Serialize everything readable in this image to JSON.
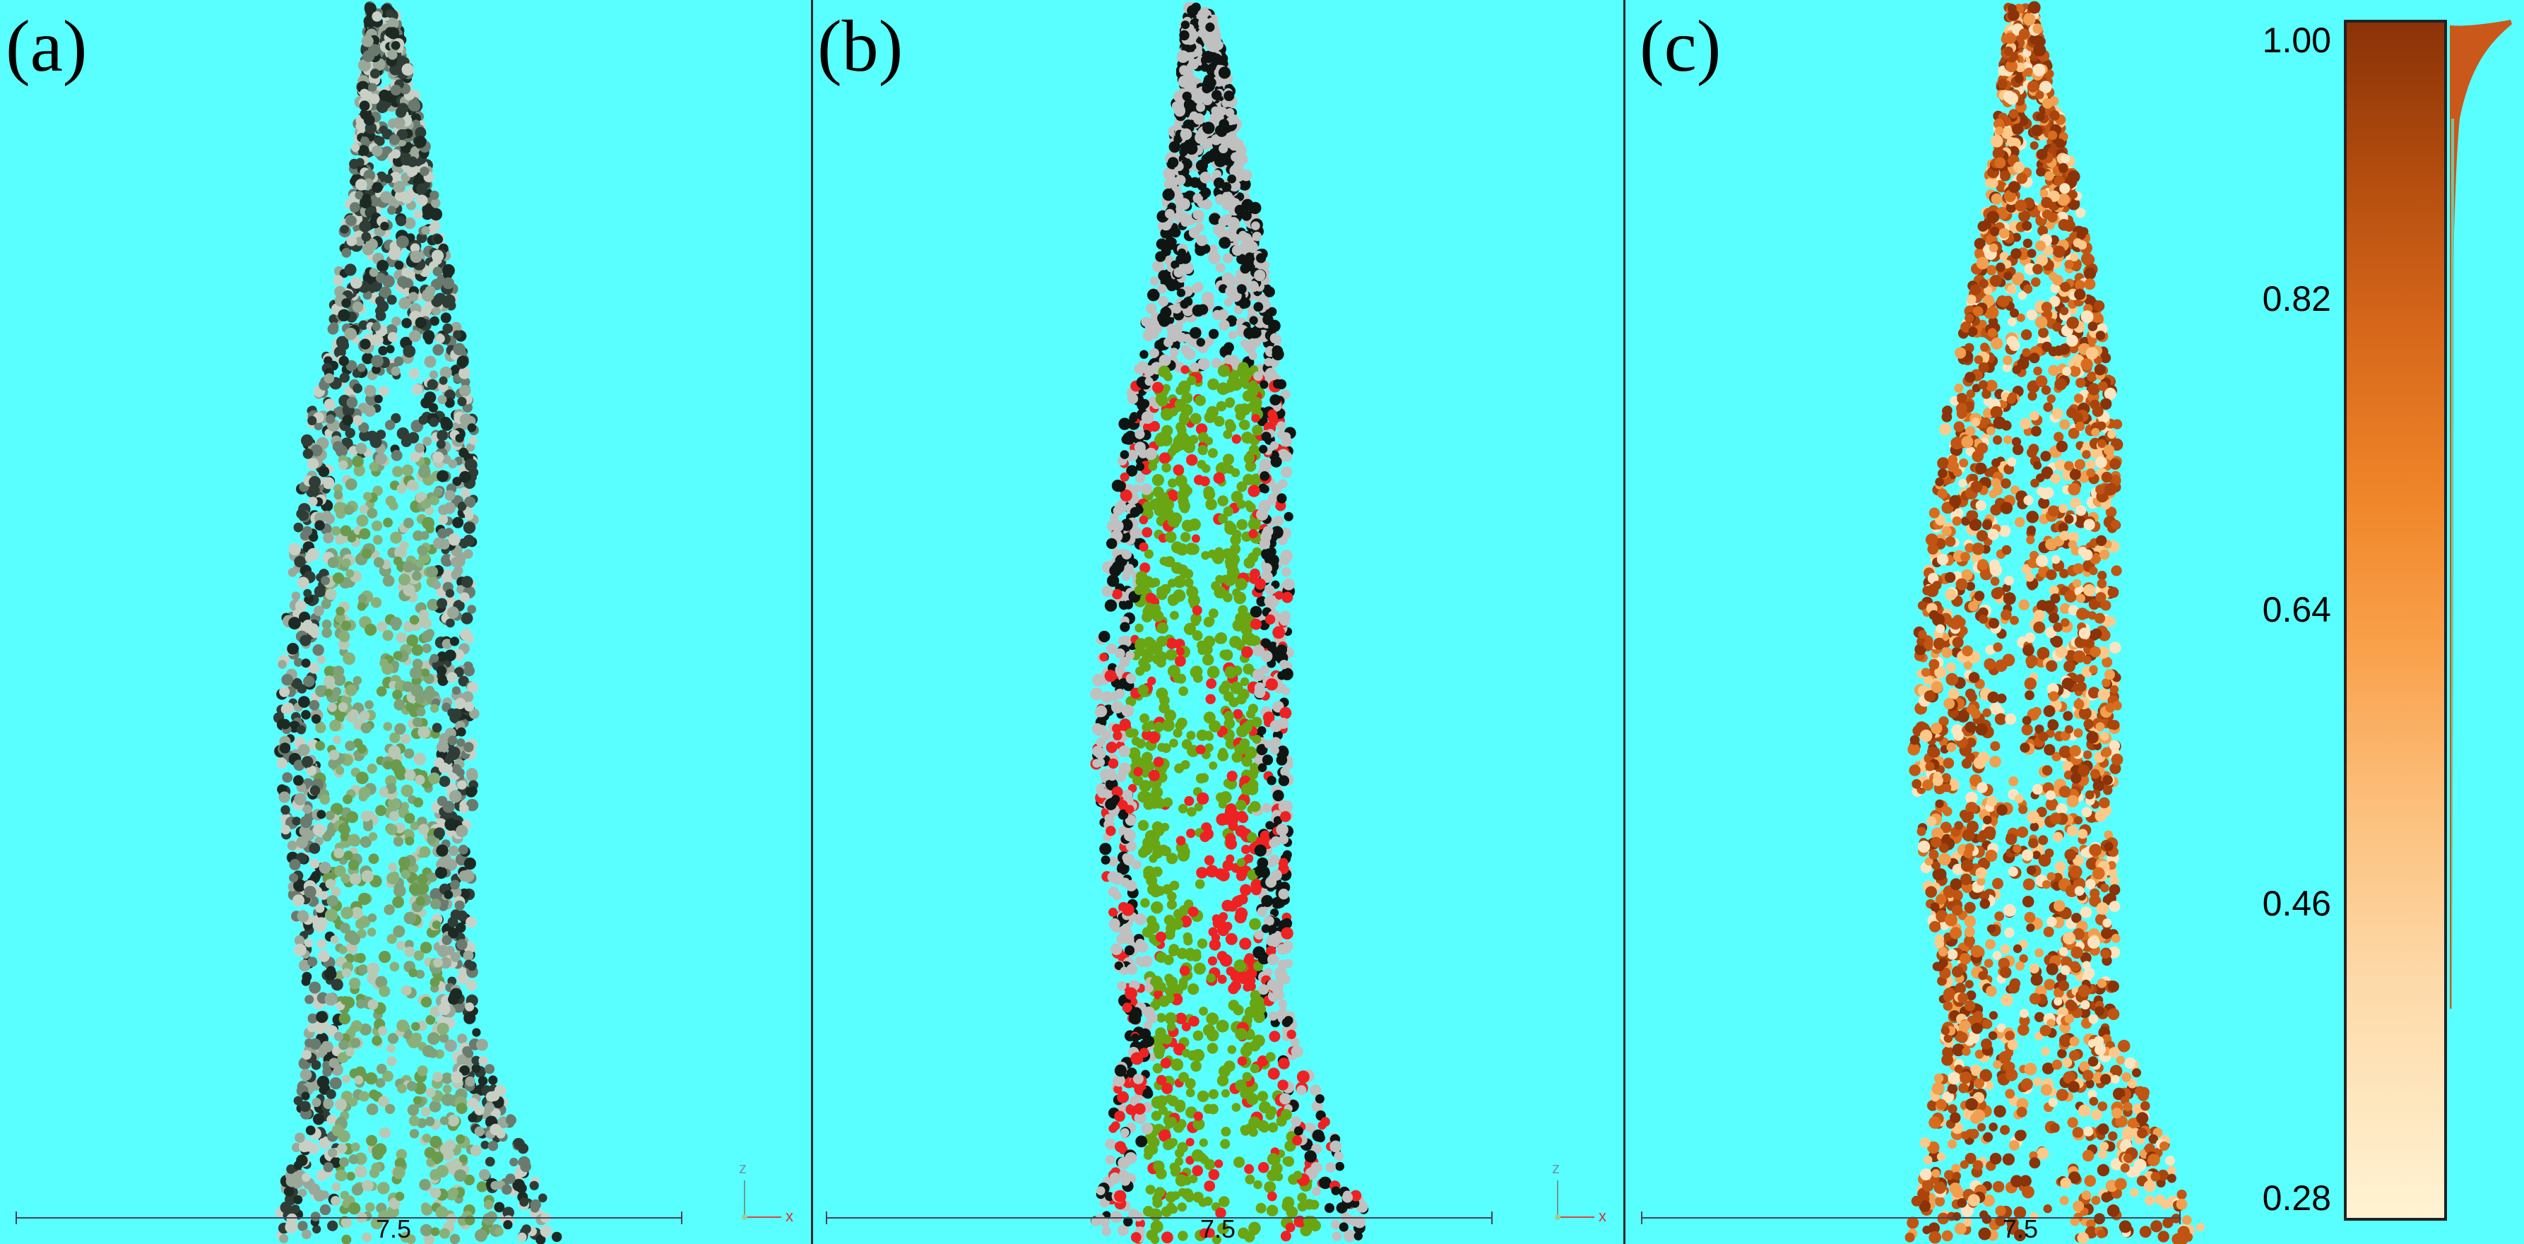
{
  "panels": [
    {
      "label": "(a)",
      "scale_label": "7.5",
      "axis_z": "z",
      "axis_x": "x",
      "scheme": "natural"
    },
    {
      "label": "(b)",
      "scale_label": "7.5",
      "axis_z": "z",
      "axis_x": "x",
      "scheme": "classified"
    },
    {
      "label": "(c)",
      "scale_label": "7.5",
      "axis_z": "",
      "axis_x": "",
      "scheme": "scalar"
    }
  ],
  "colorbar": {
    "ticks": [
      "1.00",
      "0.82",
      "0.64",
      "0.46",
      "0.28"
    ],
    "range": [
      0.28,
      1.0
    ]
  },
  "colors": {
    "background": "#59ffff",
    "natural": [
      "#1d2a24",
      "#2f3d36",
      "#6b7a6e",
      "#9aa89a",
      "#c8d0c6",
      "#7fa078",
      "#6c9a4c",
      "#8ab07a",
      "#b8c8b4"
    ],
    "classified": {
      "ground": "#c0c0c0",
      "vegetation": "#6aa514",
      "shadow": "#0f1512",
      "highlight": "#ee2222"
    },
    "scalar": [
      "#8a3208",
      "#a8440c",
      "#c05412",
      "#d86c1e",
      "#f0a050",
      "#fcc98a",
      "#fde4c0"
    ]
  }
}
